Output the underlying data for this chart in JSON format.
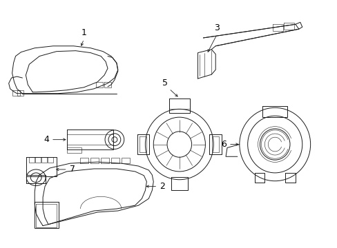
{
  "background_color": "#ffffff",
  "line_color": "#1a1a1a",
  "label_color": "#000000",
  "figsize": [
    4.89,
    3.6
  ],
  "dpi": 100,
  "label_fontsize": 9,
  "line_width": 0.7,
  "thin_lw": 0.4
}
